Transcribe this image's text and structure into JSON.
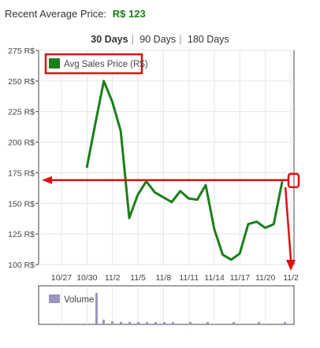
{
  "header": {
    "label": "Recent Average Price:",
    "price": "R$ 123"
  },
  "ranges": {
    "opt1": "30 Days",
    "opt2": "90 Days",
    "opt3": "180 Days",
    "active": "30 Days"
  },
  "colors": {
    "series": "#1a7f1a",
    "annotation": "#e01010",
    "volume": "#9a96c0",
    "grid": "#e4e4e4",
    "border": "#444444"
  },
  "chart_data": {
    "type": "line",
    "legend": "Avg Sales Price (R$)",
    "yticks": [
      "275 R$",
      "250 R$",
      "225 R$",
      "200 R$",
      "175 R$",
      "150 R$",
      "125 R$",
      "100 R$"
    ],
    "xticks": [
      "10/27",
      "10/30",
      "11/2",
      "11/5",
      "11/8",
      "11/11",
      "11/14",
      "11/17",
      "11/20",
      "11/2"
    ],
    "ylim": [
      100,
      275
    ],
    "series": [
      {
        "name": "Avg Sales Price (R$)",
        "values": [
          {
            "day": "10/31",
            "price": 179
          },
          {
            "day": "11/1",
            "price": 215
          },
          {
            "day": "11/2",
            "price": 250
          },
          {
            "day": "11/3",
            "price": 233
          },
          {
            "day": "11/4",
            "price": 209
          },
          {
            "day": "11/5",
            "price": 138
          },
          {
            "day": "11/6",
            "price": 157
          },
          {
            "day": "11/7",
            "price": 168
          },
          {
            "day": "11/8",
            "price": 159
          },
          {
            "day": "11/9",
            "price": 155
          },
          {
            "day": "11/10",
            "price": 151
          },
          {
            "day": "11/11",
            "price": 160
          },
          {
            "day": "11/12",
            "price": 154
          },
          {
            "day": "11/13",
            "price": 153
          },
          {
            "day": "11/14",
            "price": 165
          },
          {
            "day": "11/15",
            "price": 129
          },
          {
            "day": "11/16",
            "price": 108
          },
          {
            "day": "11/17",
            "price": 104
          },
          {
            "day": "11/18",
            "price": 109
          },
          {
            "day": "11/19",
            "price": 133
          },
          {
            "day": "11/20",
            "price": 135
          },
          {
            "day": "11/21",
            "price": 130
          },
          {
            "day": "11/22",
            "price": 133
          },
          {
            "day": "11/23",
            "price": 168
          }
        ]
      }
    ],
    "annotation_level": 169,
    "volume_label": "Volume"
  }
}
